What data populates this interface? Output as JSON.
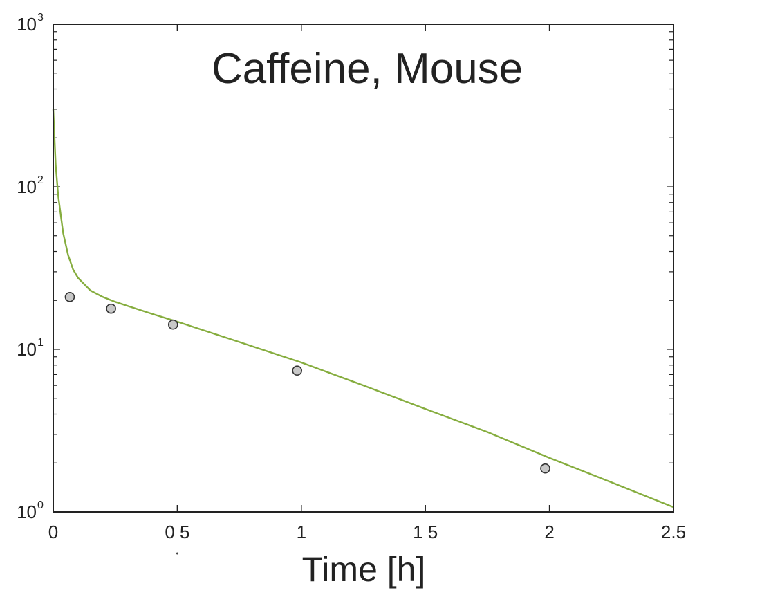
{
  "chart_data": {
    "type": "line",
    "title": "Caffeine, Mouse",
    "xlabel": "Time [h]",
    "ylabel": "",
    "xlim": [
      0,
      2.5
    ],
    "ylim": [
      1,
      1000
    ],
    "yscale": "log",
    "grid": false,
    "x_ticks": [
      {
        "value": 0,
        "label": "0"
      },
      {
        "value": 0.5,
        "label": "0 5"
      },
      {
        "value": 1,
        "label": "1"
      },
      {
        "value": 1.5,
        "label": "1 5"
      },
      {
        "value": 2,
        "label": "2"
      },
      {
        "value": 2.5,
        "label": "2.5"
      }
    ],
    "y_ticks": [
      {
        "value": 1,
        "base": "10",
        "exp": "0"
      },
      {
        "value": 10,
        "base": "10",
        "exp": "1"
      },
      {
        "value": 100,
        "base": "10",
        "exp": "2"
      },
      {
        "value": 1000,
        "base": "10",
        "exp": "3"
      }
    ],
    "series": [
      {
        "kind": "scatter",
        "color": "#c8c8c8",
        "x": [
          0.0667,
          0.233,
          0.483,
          0.983,
          1.983
        ],
        "y": [
          21,
          17.8,
          14.2,
          7.4,
          1.85
        ]
      },
      {
        "kind": "line",
        "color": "#86ad3f",
        "x": [
          0,
          0.01,
          0.02,
          0.04,
          0.06,
          0.08,
          0.1,
          0.15,
          0.2,
          0.25,
          0.3,
          0.4,
          0.5,
          0.75,
          1.0,
          1.25,
          1.5,
          1.75,
          2.0,
          2.25,
          2.5
        ],
        "y": [
          300,
          135,
          88,
          52,
          38,
          31,
          27.5,
          23,
          21,
          19.6,
          18.5,
          16.5,
          14.8,
          11.1,
          8.3,
          6.0,
          4.3,
          3.1,
          2.15,
          1.52,
          1.07
        ]
      }
    ]
  }
}
